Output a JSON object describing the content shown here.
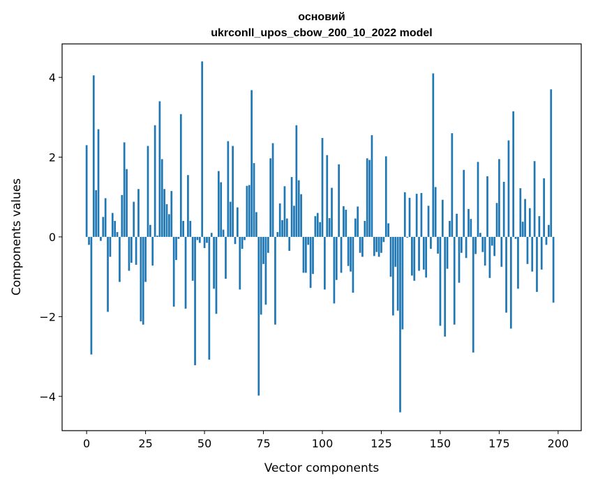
{
  "chart_data": {
    "type": "bar",
    "title_line1": "основий",
    "title_line2": "ukrconll_upos_cbow_200_10_2022 model",
    "xlabel": "Vector components",
    "ylabel": "Components values",
    "xlim": [
      -10.4,
      209.8
    ],
    "ylim": [
      -4.86,
      4.84
    ],
    "xticks": [
      0,
      25,
      50,
      75,
      100,
      125,
      150,
      175,
      200
    ],
    "yticks": [
      -4,
      -2,
      0,
      2,
      4
    ],
    "ytick_labels": [
      "−4",
      "−2",
      "0",
      "2",
      "4"
    ],
    "bar_color": "#1f77b4",
    "values": [
      2.3,
      -0.2,
      -2.95,
      4.05,
      1.17,
      2.7,
      -0.1,
      0.5,
      0.97,
      -1.88,
      -0.5,
      0.6,
      0.4,
      0.12,
      -1.13,
      1.05,
      2.37,
      1.7,
      -0.85,
      -0.65,
      0.88,
      -0.7,
      1.2,
      -2.12,
      -2.2,
      -1.13,
      2.28,
      0.3,
      -0.72,
      2.8,
      0.03,
      3.4,
      1.95,
      1.2,
      0.82,
      0.57,
      1.15,
      -1.75,
      -0.58,
      -0.05,
      3.08,
      0.4,
      -1.8,
      1.55,
      0.4,
      -1.1,
      -3.22,
      -0.08,
      -0.15,
      4.4,
      -0.28,
      -0.15,
      -3.08,
      0.1,
      -1.3,
      -1.93,
      1.65,
      1.37,
      0.18,
      -1.05,
      2.4,
      0.88,
      2.28,
      -0.18,
      0.74,
      -1.32,
      -0.3,
      -0.08,
      1.28,
      1.3,
      3.68,
      1.85,
      0.62,
      -3.98,
      -1.95,
      -0.68,
      -1.7,
      -0.4,
      1.97,
      2.35,
      -2.2,
      0.12,
      0.84,
      0.42,
      1.27,
      0.46,
      -0.35,
      1.5,
      0.78,
      2.8,
      1.42,
      1.07,
      -0.9,
      -0.9,
      -0.2,
      -1.28,
      -0.93,
      0.52,
      0.6,
      0.37,
      2.48,
      -1.32,
      2.05,
      0.47,
      1.23,
      -1.67,
      -1.08,
      1.82,
      -0.9,
      0.77,
      0.68,
      -0.73,
      -0.87,
      -1.4,
      0.46,
      0.76,
      -0.4,
      -0.5,
      0.4,
      1.97,
      1.93,
      2.55,
      -0.48,
      -0.38,
      -0.5,
      -0.4,
      -0.13,
      2.02,
      0.34,
      -1.0,
      -1.97,
      -0.75,
      -1.85,
      -4.4,
      -2.32,
      1.12,
      -0.02,
      0.98,
      -0.97,
      -1.1,
      1.08,
      -0.85,
      1.1,
      -0.82,
      -1.02,
      0.78,
      -0.3,
      4.1,
      1.25,
      -0.42,
      -2.23,
      0.93,
      -2.5,
      -0.8,
      0.4,
      2.6,
      -2.2,
      0.58,
      -1.15,
      -0.4,
      1.68,
      -0.53,
      0.7,
      0.45,
      -2.9,
      -0.43,
      1.88,
      0.1,
      -0.38,
      -0.72,
      1.52,
      -1.03,
      -0.22,
      -0.48,
      0.85,
      1.95,
      -0.75,
      1.38,
      -1.9,
      2.42,
      -2.3,
      3.15,
      -0.05,
      -1.3,
      1.22,
      0.38,
      0.95,
      -0.68,
      0.72,
      -0.87,
      1.9,
      -1.38,
      0.52,
      -0.82,
      1.47,
      -0.2,
      0.3,
      3.7,
      -1.65
    ]
  }
}
